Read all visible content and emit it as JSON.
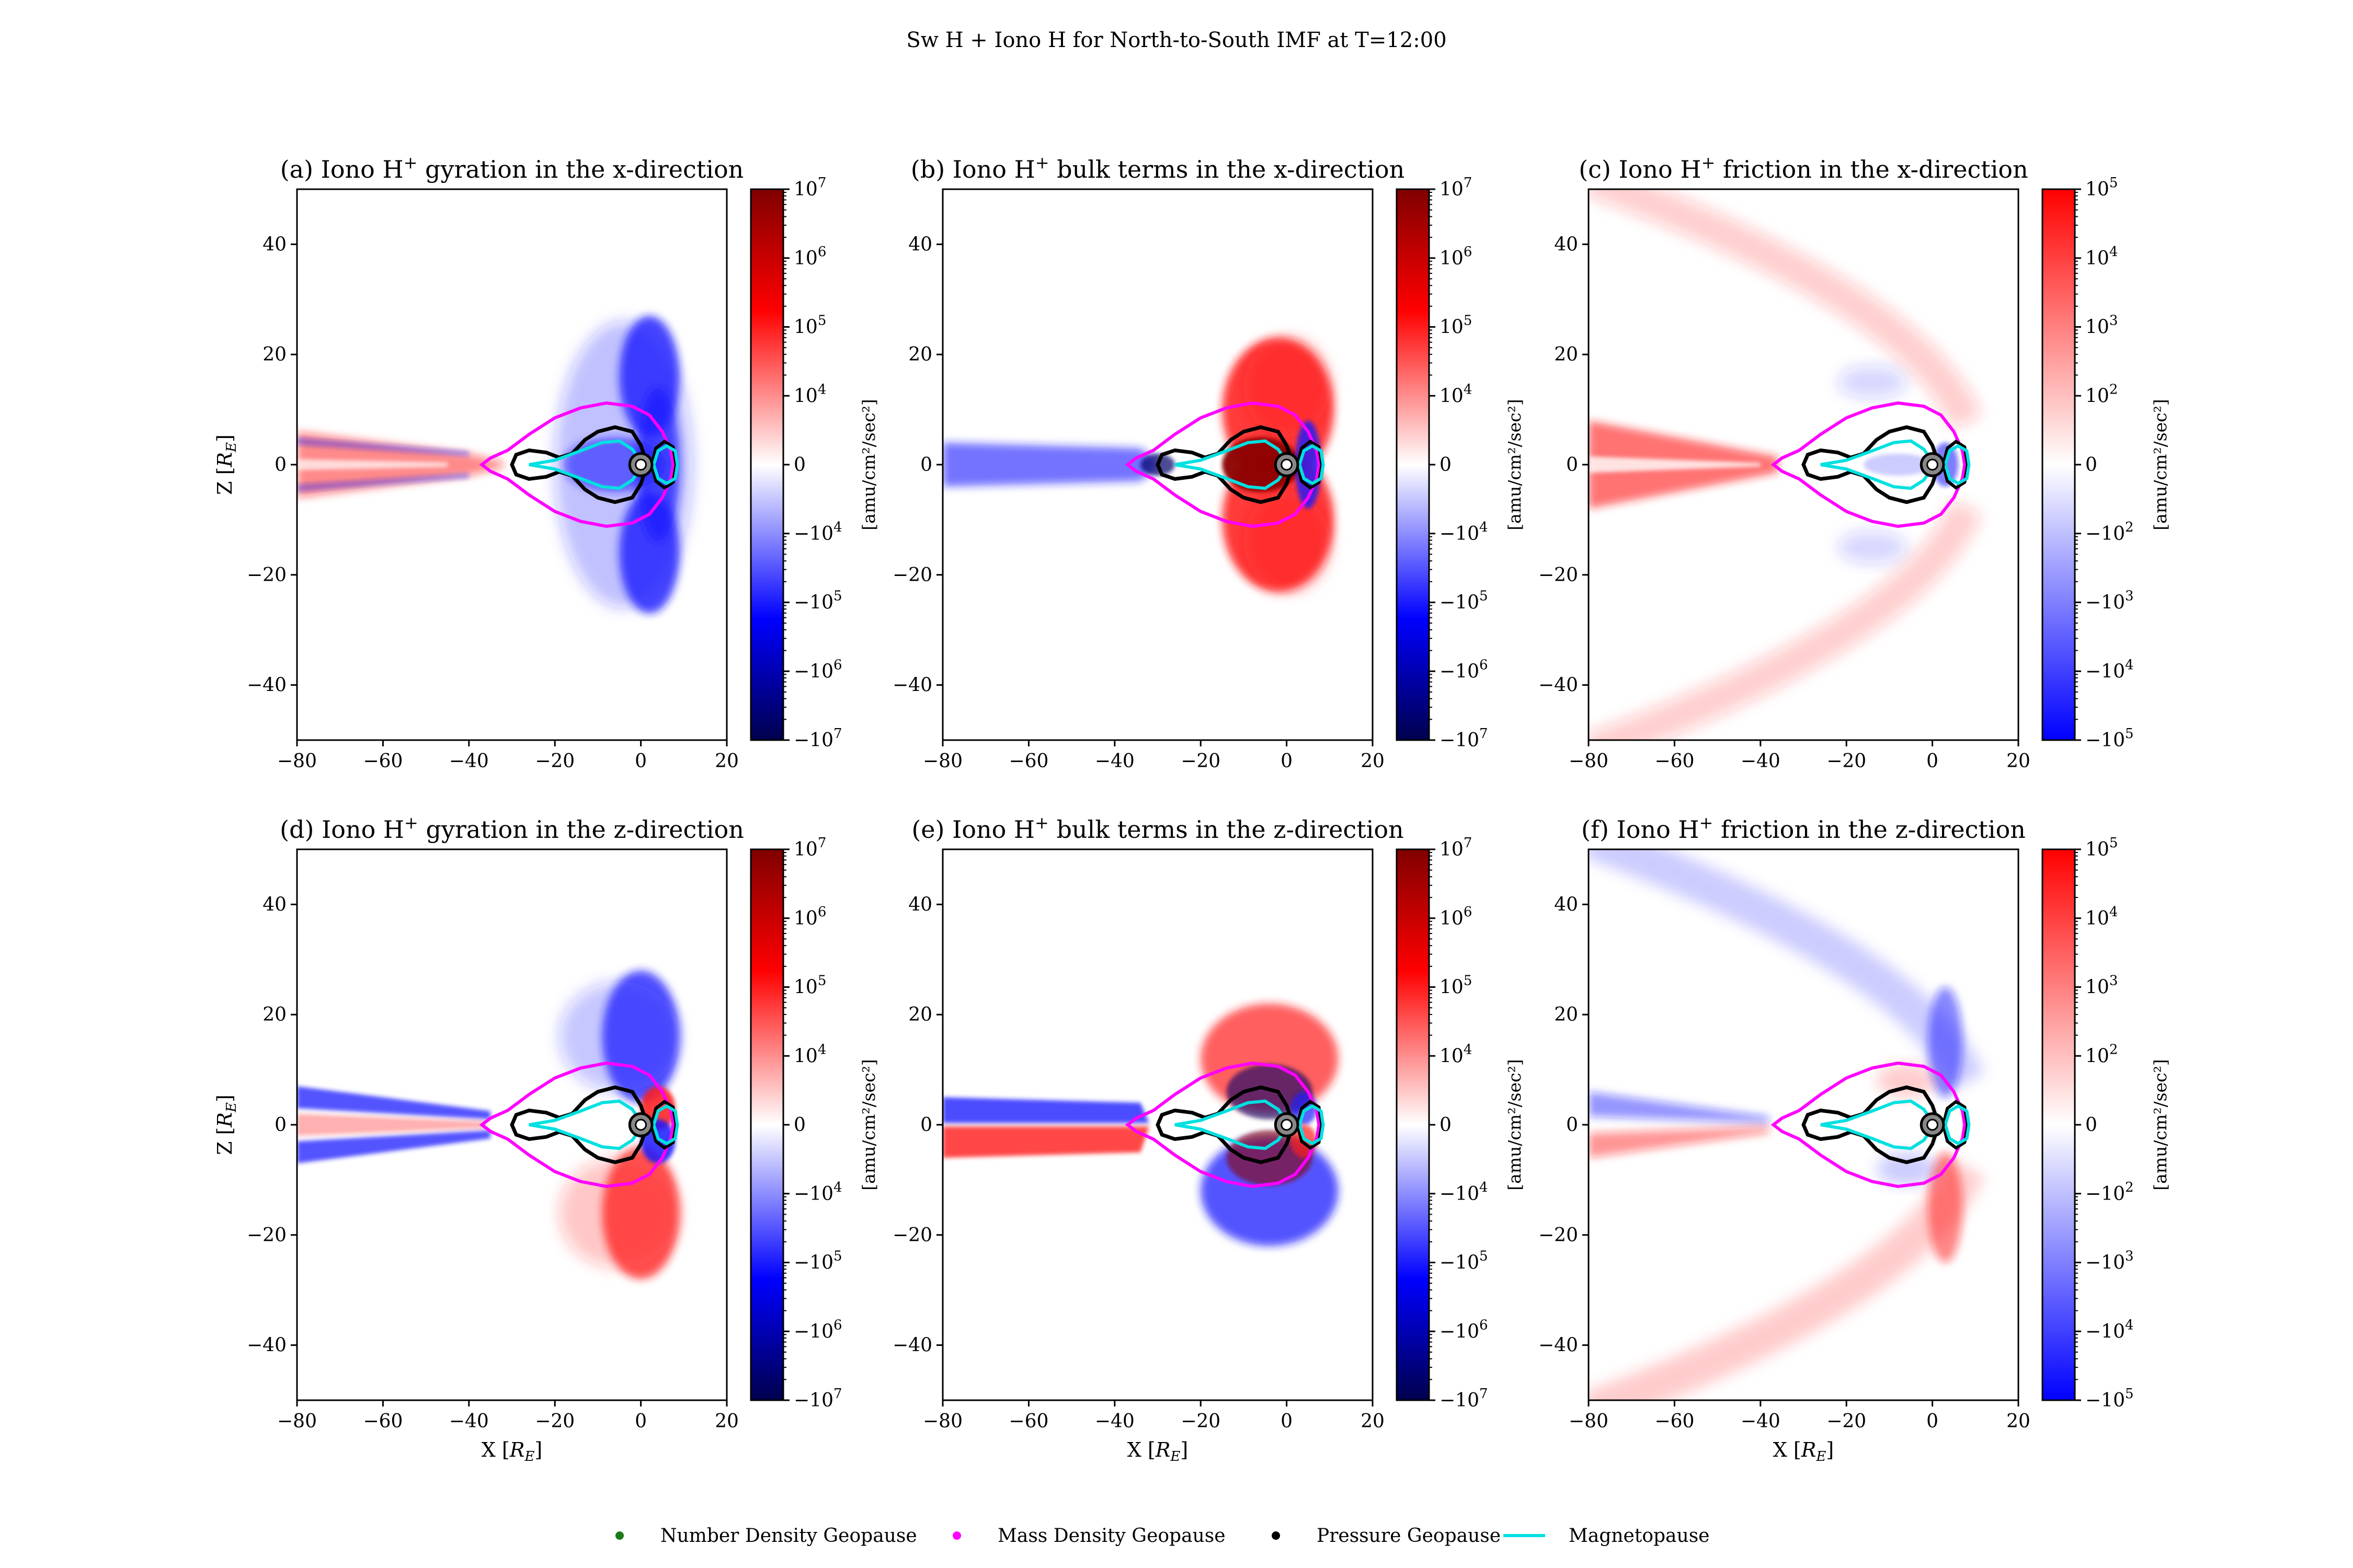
{
  "figure": {
    "suptitle": "Sw H + Iono H for North-to-South IMF at T=12:00"
  },
  "colors": {
    "number_density_geopause": "#1a7a1a",
    "mass_density_geopause": "#ff00ff",
    "pressure_geopause": "#000000",
    "magnetopause": "#00e0e0",
    "earth": "#888888"
  },
  "legend": [
    {
      "label": "Number Density Geopause",
      "color": "#1a7a1a",
      "style": "dot"
    },
    {
      "label": "Mass Density Geopause",
      "color": "#ff00ff",
      "style": "dot"
    },
    {
      "label": "Pressure Geopause",
      "color": "#000000",
      "style": "dot"
    },
    {
      "label": "Magnetopause",
      "color": "#00e0e0",
      "style": "line"
    }
  ],
  "chart_data": [
    {
      "type": "heatmap",
      "id": "a",
      "title": "(a) Iono H",
      "title_sup": "+",
      "title_rest": " gyration in the x-direction",
      "xlabel": "",
      "ylabel": "Z [R_E]",
      "xlim": [
        -80,
        20
      ],
      "ylim": [
        -50,
        50
      ],
      "xticks": [
        -80,
        -60,
        -40,
        -20,
        0,
        20
      ],
      "yticks": [
        -40,
        -20,
        0,
        20,
        40
      ],
      "colorbar": {
        "label": "[amu/cm²/sec²]",
        "scale": "symlog",
        "ticks": [
          {
            "base": "10",
            "exp": "7"
          },
          {
            "base": "10",
            "exp": "6"
          },
          {
            "base": "10",
            "exp": "5"
          },
          {
            "base": "10",
            "exp": "4"
          },
          {
            "base": "0",
            "exp": ""
          },
          {
            "base": "−10",
            "exp": "4"
          },
          {
            "base": "−10",
            "exp": "5"
          },
          {
            "base": "−10",
            "exp": "6"
          },
          {
            "base": "−10",
            "exp": "7"
          }
        ],
        "colormap": "seismic"
      }
    },
    {
      "type": "heatmap",
      "id": "b",
      "title": "(b) Iono H",
      "title_sup": "+",
      "title_rest": " bulk terms in the x-direction",
      "xlabel": "",
      "ylabel": "",
      "xlim": [
        -80,
        20
      ],
      "ylim": [
        -50,
        50
      ],
      "xticks": [
        -80,
        -60,
        -40,
        -20,
        0,
        20
      ],
      "yticks": [
        -40,
        -20,
        0,
        20,
        40
      ],
      "colorbar": {
        "label": "[amu/cm²/sec²]",
        "scale": "symlog",
        "ticks": [
          {
            "base": "10",
            "exp": "7"
          },
          {
            "base": "10",
            "exp": "6"
          },
          {
            "base": "10",
            "exp": "5"
          },
          {
            "base": "10",
            "exp": "4"
          },
          {
            "base": "0",
            "exp": ""
          },
          {
            "base": "−10",
            "exp": "4"
          },
          {
            "base": "−10",
            "exp": "5"
          },
          {
            "base": "−10",
            "exp": "6"
          },
          {
            "base": "−10",
            "exp": "7"
          }
        ],
        "colormap": "seismic"
      }
    },
    {
      "type": "heatmap",
      "id": "c",
      "title": "(c) Iono H",
      "title_sup": "+",
      "title_rest": " friction in the x-direction",
      "xlabel": "",
      "ylabel": "",
      "xlim": [
        -80,
        20
      ],
      "ylim": [
        -50,
        50
      ],
      "xticks": [
        -80,
        -60,
        -40,
        -20,
        0,
        20
      ],
      "yticks": [
        -40,
        -20,
        0,
        20,
        40
      ],
      "colorbar": {
        "label": "[amu/cm²/sec²]",
        "scale": "symlog",
        "ticks": [
          {
            "base": "10",
            "exp": "5"
          },
          {
            "base": "10",
            "exp": "4"
          },
          {
            "base": "10",
            "exp": "3"
          },
          {
            "base": "10",
            "exp": "2"
          },
          {
            "base": "0",
            "exp": ""
          },
          {
            "base": "−10",
            "exp": "2"
          },
          {
            "base": "−10",
            "exp": "3"
          },
          {
            "base": "−10",
            "exp": "4"
          },
          {
            "base": "−10",
            "exp": "5"
          }
        ],
        "colormap": "bwr"
      }
    },
    {
      "type": "heatmap",
      "id": "d",
      "title": "(d) Iono H",
      "title_sup": "+",
      "title_rest": " gyration in the z-direction",
      "xlabel": "X [R_E]",
      "ylabel": "Z [R_E]",
      "xlim": [
        -80,
        20
      ],
      "ylim": [
        -50,
        50
      ],
      "xticks": [
        -80,
        -60,
        -40,
        -20,
        0,
        20
      ],
      "yticks": [
        -40,
        -20,
        0,
        20,
        40
      ],
      "colorbar": {
        "label": "[amu/cm²/sec²]",
        "scale": "symlog",
        "ticks": [
          {
            "base": "10",
            "exp": "7"
          },
          {
            "base": "10",
            "exp": "6"
          },
          {
            "base": "10",
            "exp": "5"
          },
          {
            "base": "10",
            "exp": "4"
          },
          {
            "base": "0",
            "exp": ""
          },
          {
            "base": "−10",
            "exp": "4"
          },
          {
            "base": "−10",
            "exp": "5"
          },
          {
            "base": "−10",
            "exp": "6"
          },
          {
            "base": "−10",
            "exp": "7"
          }
        ],
        "colormap": "seismic"
      }
    },
    {
      "type": "heatmap",
      "id": "e",
      "title": "(e) Iono H",
      "title_sup": "+",
      "title_rest": " bulk terms in the z-direction",
      "xlabel": "X [R_E]",
      "ylabel": "",
      "xlim": [
        -80,
        20
      ],
      "ylim": [
        -50,
        50
      ],
      "xticks": [
        -80,
        -60,
        -40,
        -20,
        0,
        20
      ],
      "yticks": [
        -40,
        -20,
        0,
        20,
        40
      ],
      "colorbar": {
        "label": "[amu/cm²/sec²]",
        "scale": "symlog",
        "ticks": [
          {
            "base": "10",
            "exp": "7"
          },
          {
            "base": "10",
            "exp": "6"
          },
          {
            "base": "10",
            "exp": "5"
          },
          {
            "base": "10",
            "exp": "4"
          },
          {
            "base": "0",
            "exp": ""
          },
          {
            "base": "−10",
            "exp": "4"
          },
          {
            "base": "−10",
            "exp": "5"
          },
          {
            "base": "−10",
            "exp": "6"
          },
          {
            "base": "−10",
            "exp": "7"
          }
        ],
        "colormap": "seismic"
      }
    },
    {
      "type": "heatmap",
      "id": "f",
      "title": "(f) Iono H",
      "title_sup": "+",
      "title_rest": " friction in the z-direction",
      "xlabel": "X [R_E]",
      "ylabel": "",
      "xlim": [
        -80,
        20
      ],
      "ylim": [
        -50,
        50
      ],
      "xticks": [
        -80,
        -60,
        -40,
        -20,
        0,
        20
      ],
      "yticks": [
        -40,
        -20,
        0,
        20,
        40
      ],
      "colorbar": {
        "label": "[amu/cm²/sec²]",
        "scale": "symlog",
        "ticks": [
          {
            "base": "10",
            "exp": "5"
          },
          {
            "base": "10",
            "exp": "4"
          },
          {
            "base": "10",
            "exp": "3"
          },
          {
            "base": "10",
            "exp": "2"
          },
          {
            "base": "0",
            "exp": ""
          },
          {
            "base": "−10",
            "exp": "2"
          },
          {
            "base": "−10",
            "exp": "3"
          },
          {
            "base": "−10",
            "exp": "4"
          },
          {
            "base": "−10",
            "exp": "5"
          }
        ],
        "colormap": "bwr"
      }
    }
  ]
}
